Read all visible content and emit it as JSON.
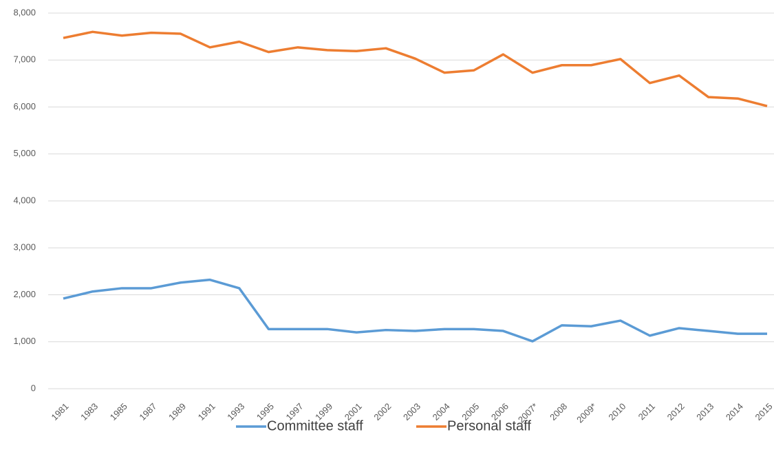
{
  "chart_data": {
    "type": "line",
    "categories": [
      "1981",
      "1983",
      "1985",
      "1987",
      "1989",
      "1991",
      "1993",
      "1995",
      "1997",
      "1999",
      "2001",
      "2002",
      "2003",
      "2004",
      "2005",
      "2006",
      "2007*",
      "2008",
      "2009*",
      "2010",
      "2011",
      "2012",
      "2013",
      "2014",
      "2015"
    ],
    "series": [
      {
        "name": "Committee staff",
        "color": "#5b9bd5",
        "values": [
          1920,
          2070,
          2140,
          2140,
          2260,
          2320,
          2140,
          1270,
          1270,
          1270,
          1200,
          1250,
          1230,
          1270,
          1270,
          1230,
          1010,
          1350,
          1330,
          1450,
          1130,
          1290,
          1230,
          1170,
          1170
        ]
      },
      {
        "name": "Personal staff",
        "color": "#ed7d31",
        "values": [
          7470,
          7600,
          7520,
          7580,
          7560,
          7270,
          7390,
          7170,
          7270,
          7210,
          7190,
          7250,
          7030,
          6730,
          6780,
          7120,
          6730,
          6890,
          6890,
          7020,
          6510,
          6670,
          6210,
          6180,
          6020
        ]
      }
    ],
    "ylim": [
      0,
      8000
    ],
    "yticks": [
      0,
      {
        "value": 1000,
        "label": "1,000"
      },
      {
        "value": 2000,
        "label": "2,000"
      },
      {
        "value": 3000,
        "label": "3,000"
      },
      {
        "value": 4000,
        "label": "4,000"
      },
      {
        "value": 5000,
        "label": "5,000"
      },
      {
        "value": 6000,
        "label": "6,000"
      },
      {
        "value": 7000,
        "label": "7,000"
      },
      {
        "value": 8000,
        "label": "8,000"
      }
    ],
    "grid": true,
    "legend": "bottom"
  }
}
